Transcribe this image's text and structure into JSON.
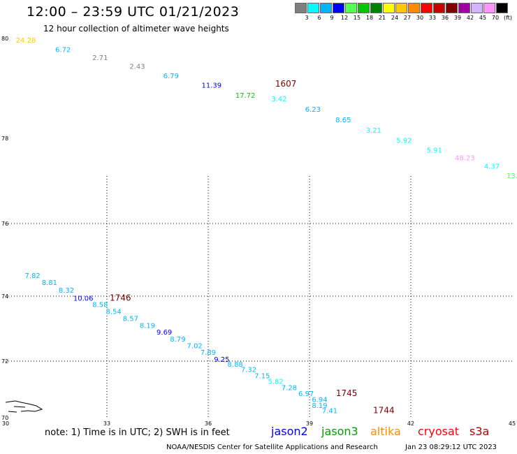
{
  "header": {
    "title": "12:00 – 23:59 UTC 01/21/2023",
    "subtitle": "12 hour collection of altimeter wave heights"
  },
  "color_scale": {
    "colors": [
      "#7f7f7f",
      "#00ffff",
      "#00b4ff",
      "#0000ff",
      "#55ff55",
      "#00c800",
      "#008200",
      "#ffff00",
      "#ffc800",
      "#ff8c00",
      "#ff0000",
      "#c80000",
      "#7f0000",
      "#a000a0",
      "#d2b4ff",
      "#ff96ff",
      "#000000"
    ],
    "labels": [
      "3",
      "6",
      "9",
      "12",
      "15",
      "18",
      "21",
      "24",
      "27",
      "30",
      "33",
      "36",
      "39",
      "42",
      "45",
      "70",
      "(ft)"
    ]
  },
  "axes": {
    "y_ticks": [
      "80",
      "78",
      "76",
      "74",
      "72",
      "70"
    ],
    "x_ticks": [
      "30",
      "33",
      "36",
      "39",
      "42",
      "45"
    ]
  },
  "tracks": [
    {
      "name": "track-north",
      "points": [
        {
          "lon": 30.6,
          "lat": 79.97,
          "text": "24.28",
          "color": "#ffc800"
        },
        {
          "lon": 31.7,
          "lat": 79.78,
          "text": "6.72",
          "color": "#00b4ff"
        },
        {
          "lon": 32.8,
          "lat": 79.62,
          "text": "2.71",
          "color": "#7f7f7f"
        },
        {
          "lon": 33.9,
          "lat": 79.45,
          "text": "2.43",
          "color": "#7f7f7f"
        },
        {
          "lon": 34.9,
          "lat": 79.26,
          "text": "6.79",
          "color": "#00b4ff"
        },
        {
          "lon": 36.1,
          "lat": 79.07,
          "text": "11.39",
          "color": "#0000ff"
        },
        {
          "lon": 37.1,
          "lat": 78.87,
          "text": "17.72",
          "color": "#00c800"
        },
        {
          "lon": 38.1,
          "lat": 78.8,
          "text": "3.42",
          "color": "#00ffff"
        },
        {
          "lon": 39.1,
          "lat": 78.59,
          "text": "6.23",
          "color": "#00b4ff"
        },
        {
          "lon": 40.0,
          "lat": 78.38,
          "text": "8.65",
          "color": "#00b4ff"
        },
        {
          "lon": 40.9,
          "lat": 78.17,
          "text": "3.21",
          "color": "#00ffff"
        },
        {
          "lon": 41.8,
          "lat": 77.96,
          "text": "5.92",
          "color": "#00ffff"
        },
        {
          "lon": 42.7,
          "lat": 77.73,
          "text": "5.91",
          "color": "#00ffff"
        },
        {
          "lon": 43.6,
          "lat": 77.55,
          "text": "48.23",
          "color": "#ff96ff"
        },
        {
          "lon": 44.4,
          "lat": 77.35,
          "text": "4.37",
          "color": "#00ffff"
        },
        {
          "lon": 45.0,
          "lat": 77.13,
          "text": "13.",
          "color": "#55ff55"
        }
      ]
    },
    {
      "name": "track-south",
      "points": [
        {
          "lon": 30.8,
          "lat": 74.58,
          "text": "7.82",
          "color": "#00b4ff"
        },
        {
          "lon": 31.3,
          "lat": 74.38,
          "text": "8.81",
          "color": "#00b4ff"
        },
        {
          "lon": 31.8,
          "lat": 74.17,
          "text": "8.32",
          "color": "#00b4ff"
        },
        {
          "lon": 32.3,
          "lat": 73.95,
          "text": "10.06",
          "color": "#0000ff"
        },
        {
          "lon": 32.8,
          "lat": 73.75,
          "text": "8.58",
          "color": "#00b4ff"
        },
        {
          "lon": 33.2,
          "lat": 73.54,
          "text": "8.54",
          "color": "#00b4ff"
        },
        {
          "lon": 33.7,
          "lat": 73.32,
          "text": "8.57",
          "color": "#00b4ff"
        },
        {
          "lon": 34.2,
          "lat": 73.11,
          "text": "8.19",
          "color": "#00b4ff"
        },
        {
          "lon": 34.7,
          "lat": 72.9,
          "text": "9.69",
          "color": "#0000ff"
        },
        {
          "lon": 35.1,
          "lat": 72.69,
          "text": "8.79",
          "color": "#00b4ff"
        },
        {
          "lon": 35.6,
          "lat": 72.48,
          "text": "7.02",
          "color": "#00b4ff"
        },
        {
          "lon": 36.0,
          "lat": 72.28,
          "text": "7.89",
          "color": "#00b4ff"
        },
        {
          "lon": 36.4,
          "lat": 72.06,
          "text": "9.25",
          "color": "#0000ff"
        },
        {
          "lon": 36.8,
          "lat": 71.9,
          "text": "8.88",
          "color": "#00b4ff"
        },
        {
          "lon": 37.2,
          "lat": 71.72,
          "text": "7.32",
          "color": "#00b4ff"
        },
        {
          "lon": 37.6,
          "lat": 71.5,
          "text": "7.15",
          "color": "#00b4ff"
        },
        {
          "lon": 38.0,
          "lat": 71.3,
          "text": "5.82",
          "color": "#00ffff"
        },
        {
          "lon": 38.4,
          "lat": 71.08,
          "text": "7.28",
          "color": "#00b4ff"
        },
        {
          "lon": 38.9,
          "lat": 70.87,
          "text": "6.97",
          "color": "#00b4ff"
        },
        {
          "lon": 39.3,
          "lat": 70.66,
          "text": "6.94",
          "color": "#00b4ff"
        },
        {
          "lon": 39.3,
          "lat": 70.44,
          "text": "8.19",
          "color": "#00b4ff"
        },
        {
          "lon": 39.6,
          "lat": 70.26,
          "text": "7.41",
          "color": "#00b4ff"
        }
      ]
    }
  ],
  "times": [
    {
      "lon": 38.3,
      "lat": 79.09,
      "text": "1607",
      "color": "#7f0000"
    },
    {
      "lon": 33.4,
      "lat": 73.95,
      "text": "1746",
      "color": "#7f0000"
    },
    {
      "lon": 40.1,
      "lat": 70.87,
      "text": "1745",
      "color": "#7f0000"
    },
    {
      "lon": 41.2,
      "lat": 70.26,
      "text": "1744",
      "color": "#7f0000"
    }
  ],
  "missions": [
    {
      "label": "jason2",
      "color": "#0000ff"
    },
    {
      "label": "jason3",
      "color": "#00a000"
    },
    {
      "label": "altika",
      "color": "#ff8c00"
    },
    {
      "label": "cryosat",
      "color": "#ff0000"
    },
    {
      "label": "s3a",
      "color": "#b00000"
    }
  ],
  "footer": {
    "note": "note: 1) Time is in UTC; 2) SWH is in feet",
    "credit": "NOAA/NESDIS Center for Satellite Applications and Research",
    "date": "Jan 23 08:29:12 UTC 2023"
  }
}
